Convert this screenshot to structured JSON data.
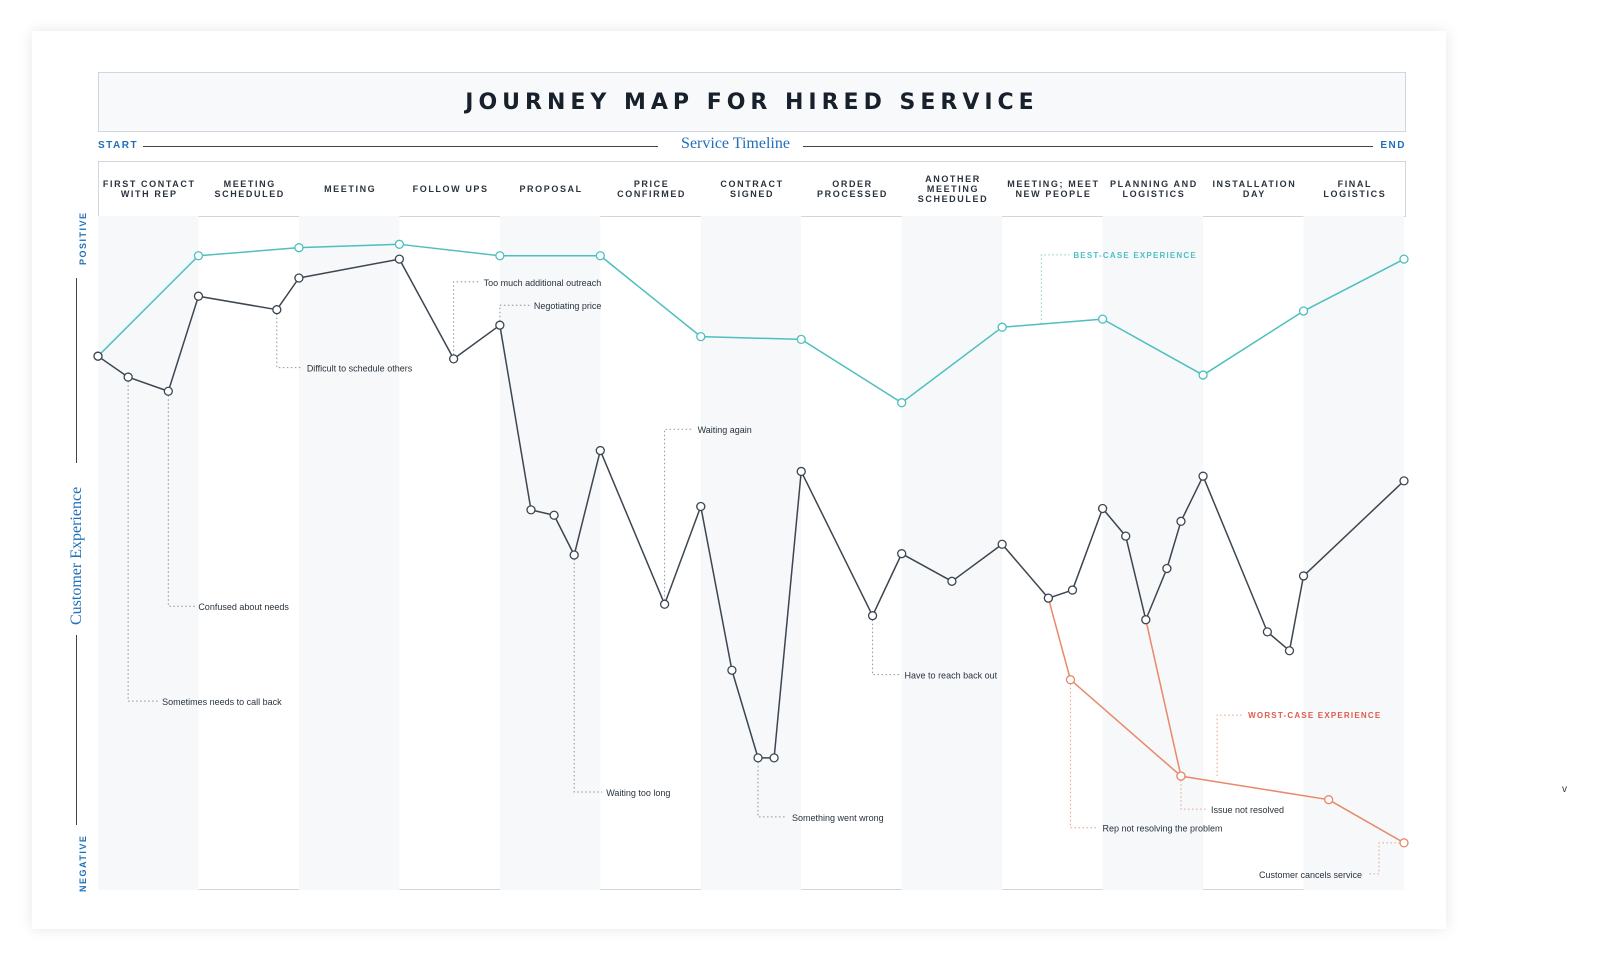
{
  "title": "JOURNEY MAP FOR HIRED SERVICE",
  "timeline": {
    "start": "START",
    "label": "Service Timeline",
    "end": "END"
  },
  "y_axis": {
    "positive": "POSITIVE",
    "label": "Customer Experience",
    "negative": "NEGATIVE"
  },
  "edge_glyph": "v",
  "colors": {
    "best": "#4dbfbf",
    "main": "#3c4650",
    "worst": "#e8896a",
    "accent": "#1f6fb8",
    "worst_label": "#e05a4a"
  },
  "chart_data": {
    "type": "line",
    "title": "JOURNEY MAP FOR HIRED SERVICE",
    "xlabel": "Service Timeline",
    "ylabel": "Customer Experience",
    "stages": [
      "FIRST CONTACT WITH REP",
      "MEETING SCHEDULED",
      "MEETING",
      "FOLLOW UPS",
      "PROPOSAL",
      "PRICE CONFIRMED",
      "CONTRACT SIGNED",
      "ORDER PROCESSED",
      "ANOTHER MEETING SCHEDULED",
      "MEETING; MEET NEW PEOPLE",
      "PLANNING AND LOGISTICS",
      "INSTALLATION DAY",
      "FINAL LOGISTICS"
    ],
    "xlim": [
      0,
      13
    ],
    "ylim": [
      0,
      100
    ],
    "series": [
      {
        "name": "BEST-CASE EXPERIENCE",
        "points": [
          [
            0,
            79.2
          ],
          [
            1,
            94.1
          ],
          [
            2,
            95.3
          ],
          [
            3,
            95.8
          ],
          [
            4,
            94.1
          ],
          [
            5,
            94.1
          ],
          [
            6,
            82.1
          ],
          [
            7,
            81.7
          ],
          [
            8,
            72.3
          ],
          [
            9,
            83.5
          ],
          [
            10,
            84.7
          ],
          [
            11,
            76.4
          ],
          [
            12,
            85.9
          ],
          [
            13,
            93.6
          ]
        ]
      },
      {
        "name": "main",
        "points": [
          [
            0,
            79.2
          ],
          [
            0.3,
            76.1
          ],
          [
            0.7,
            74.0
          ],
          [
            1,
            88.1
          ],
          [
            1.78,
            86.1
          ],
          [
            2,
            90.8
          ],
          [
            3,
            93.6
          ],
          [
            3.54,
            78.8
          ],
          [
            4,
            83.8
          ],
          [
            4.31,
            56.4
          ],
          [
            4.54,
            55.6
          ],
          [
            4.74,
            49.7
          ],
          [
            5,
            65.2
          ],
          [
            5.64,
            42.4
          ],
          [
            6,
            56.9
          ],
          [
            6.31,
            32.6
          ],
          [
            6.57,
            19.6
          ],
          [
            6.73,
            19.6
          ],
          [
            7,
            62.1
          ],
          [
            7.71,
            40.7
          ],
          [
            8,
            49.9
          ],
          [
            8.5,
            45.8
          ],
          [
            9,
            51.3
          ],
          [
            9.46,
            43.3
          ],
          [
            9.7,
            44.5
          ],
          [
            10,
            56.6
          ],
          [
            10.23,
            52.5
          ],
          [
            10.43,
            40.1
          ],
          [
            10.64,
            47.7
          ],
          [
            10.78,
            54.7
          ],
          [
            11,
            61.4
          ],
          [
            11.64,
            38.3
          ],
          [
            11.86,
            35.5
          ],
          [
            12,
            46.6
          ],
          [
            13,
            60.7
          ]
        ]
      },
      {
        "name": "WORST-CASE EXPERIENCE",
        "branches": [
          [
            [
              9.46,
              43.3
            ],
            [
              9.68,
              31.2
            ],
            [
              10.78,
              16.9
            ],
            [
              12.25,
              13.4
            ],
            [
              13,
              7.0
            ]
          ],
          [
            [
              10.43,
              40.1
            ],
            [
              10.78,
              16.9
            ]
          ]
        ]
      }
    ],
    "annotations": [
      {
        "text": "Sometimes needs to call back",
        "at": [
          0.3,
          76.1
        ]
      },
      {
        "text": "Confused about needs",
        "at": [
          0.7,
          74.0
        ]
      },
      {
        "text": "Difficult to schedule others",
        "at": [
          1.78,
          86.1
        ]
      },
      {
        "text": "Too much additional outreach",
        "at": [
          3.54,
          78.8
        ]
      },
      {
        "text": "Negotiating price",
        "at": [
          4,
          83.8
        ]
      },
      {
        "text": "Waiting too long",
        "at": [
          4.74,
          49.7
        ]
      },
      {
        "text": "Waiting again",
        "at": [
          5.64,
          42.4
        ]
      },
      {
        "text": "Something went wrong",
        "at": [
          6.57,
          19.6
        ]
      },
      {
        "text": "Have to reach back out",
        "at": [
          7.71,
          40.7
        ]
      },
      {
        "text": "BEST-CASE EXPERIENCE",
        "at": [
          9.39,
          84.0
        ]
      },
      {
        "text": "WORST-CASE EXPERIENCE",
        "at": [
          11.14,
          16.9
        ]
      },
      {
        "text": "Rep not resolving the problem",
        "at": [
          9.68,
          31.2
        ]
      },
      {
        "text": "Issue not resolved",
        "at": [
          10.78,
          16.9
        ]
      },
      {
        "text": "Customer cancels service",
        "at": [
          13,
          7.0
        ]
      }
    ],
    "grid": "alternating stage columns",
    "legend": "inline labels"
  }
}
